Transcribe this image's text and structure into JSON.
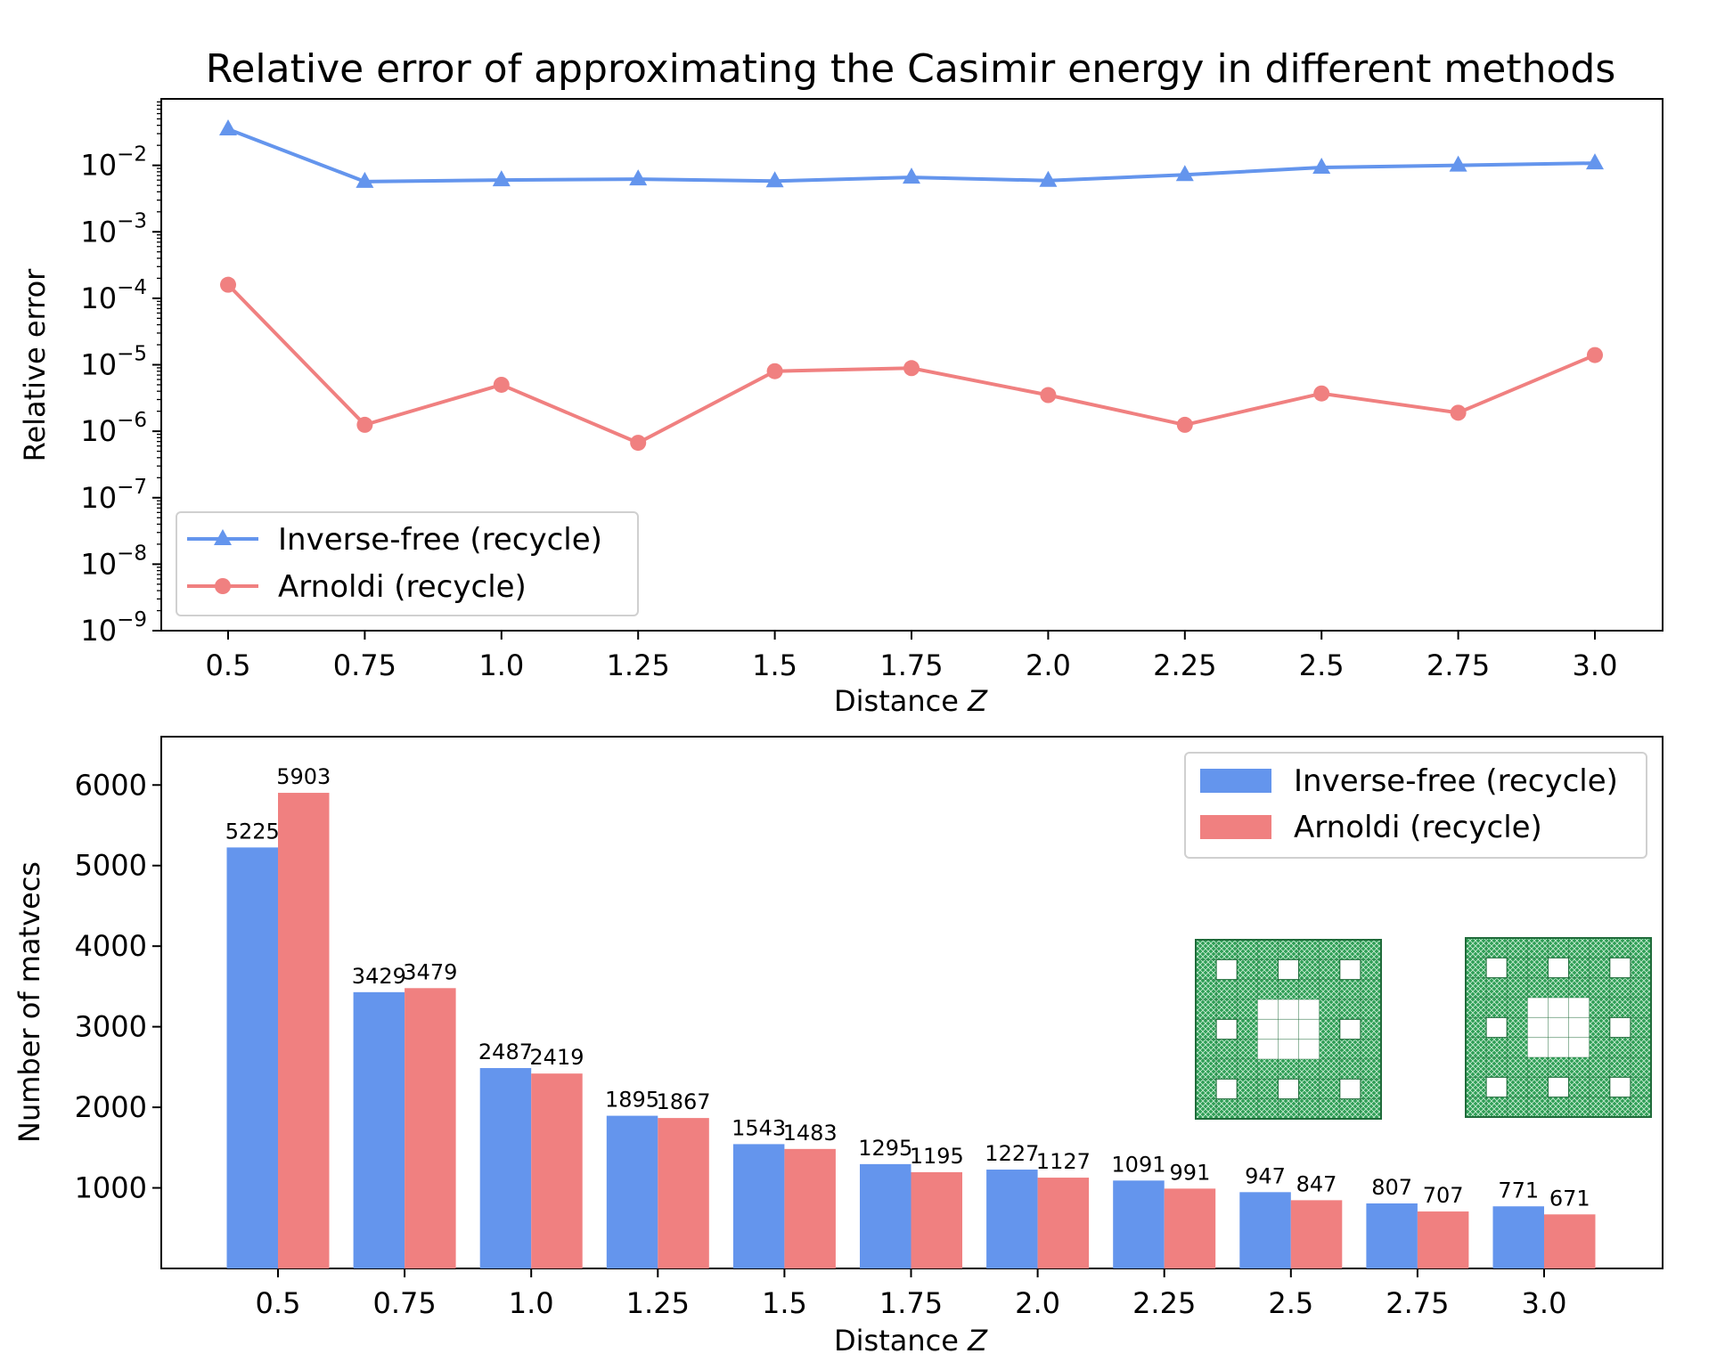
{
  "chart_data": [
    {
      "type": "line",
      "title": "Relative error of approximating the Casimir energy in different methods",
      "xlabel": "Distance Z",
      "ylabel": "Relative error",
      "yscale": "log",
      "ylim": [
        1e-09,
        0.1
      ],
      "y_ticks": [
        {
          "base": "10",
          "exp": "−9"
        },
        {
          "base": "10",
          "exp": "−8"
        },
        {
          "base": "10",
          "exp": "−7"
        },
        {
          "base": "10",
          "exp": "−6"
        },
        {
          "base": "10",
          "exp": "−5"
        },
        {
          "base": "10",
          "exp": "−4"
        },
        {
          "base": "10",
          "exp": "−3"
        },
        {
          "base": "10",
          "exp": "−2"
        }
      ],
      "categories": [
        "0.5",
        "0.75",
        "1.0",
        "1.25",
        "1.5",
        "1.75",
        "2.0",
        "2.25",
        "2.5",
        "2.75",
        "3.0"
      ],
      "legend": "lower-left",
      "grid": false,
      "series": [
        {
          "name": "Inverse-free (recycle)",
          "color": "#6495ED",
          "marker": "triangle",
          "values": [
            0.035,
            0.0057,
            0.006,
            0.0062,
            0.0058,
            0.0066,
            0.0059,
            0.0072,
            0.0093,
            0.01,
            0.0108
          ]
        },
        {
          "name": "Arnoldi (recycle)",
          "color": "#F08080",
          "marker": "circle",
          "values": [
            0.00016,
            1.25e-06,
            5e-06,
            6.7e-07,
            8e-06,
            8.9e-06,
            3.5e-06,
            1.25e-06,
            3.7e-06,
            1.9e-06,
            1.4e-05
          ]
        }
      ]
    },
    {
      "type": "bar",
      "xlabel": "Distance Z",
      "ylabel": "Number of matvecs",
      "ylim": [
        0,
        6600
      ],
      "y_ticks": [
        1000,
        2000,
        3000,
        4000,
        5000,
        6000
      ],
      "categories": [
        "0.5",
        "0.75",
        "1.0",
        "1.25",
        "1.5",
        "1.75",
        "2.0",
        "2.25",
        "2.5",
        "2.75",
        "3.0"
      ],
      "legend": "top-right",
      "grid": false,
      "series": [
        {
          "name": "Inverse-free (recycle)",
          "color": "#6495ED",
          "values": [
            5225,
            3429,
            2487,
            1895,
            1543,
            1295,
            1227,
            1091,
            947,
            807,
            771
          ]
        },
        {
          "name": "Arnoldi (recycle)",
          "color": "#F08080",
          "values": [
            5903,
            3479,
            2419,
            1867,
            1483,
            1195,
            1127,
            991,
            847,
            707,
            671
          ]
        }
      ],
      "inset_image": {
        "color": "#2E9E55",
        "count": 2
      }
    }
  ]
}
